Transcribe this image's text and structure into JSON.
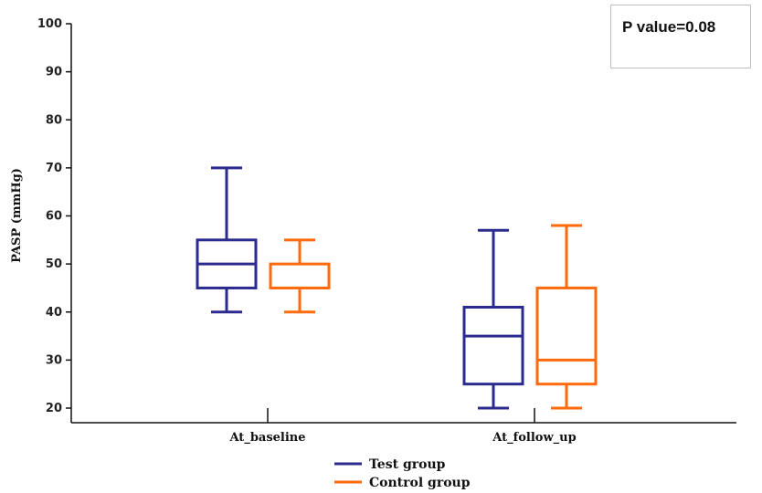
{
  "chart_data": {
    "type": "boxplot",
    "title": "",
    "xlabel": "",
    "ylabel": "PASP (mmHg)",
    "ylim": [
      20,
      100
    ],
    "yticks": [
      20,
      30,
      40,
      50,
      60,
      70,
      80,
      90,
      100
    ],
    "categories": [
      "At_baseline",
      "At_follow_up"
    ],
    "series": [
      {
        "name": "Test group",
        "color": "#2b2b8f",
        "boxes": [
          {
            "min": 40,
            "q1": 45,
            "median": 50,
            "q3": 55,
            "max": 70
          },
          {
            "min": 20,
            "q1": 25,
            "median": 35,
            "q3": 41,
            "max": 57
          }
        ]
      },
      {
        "name": "Control group",
        "color": "#ff6a0d",
        "boxes": [
          {
            "min": 40,
            "q1": 45,
            "median": 45,
            "q3": 50,
            "max": 55
          },
          {
            "min": 20,
            "q1": 25,
            "median": 30,
            "q3": 45,
            "max": 58
          }
        ]
      }
    ],
    "annotation": "P value=0.08"
  }
}
